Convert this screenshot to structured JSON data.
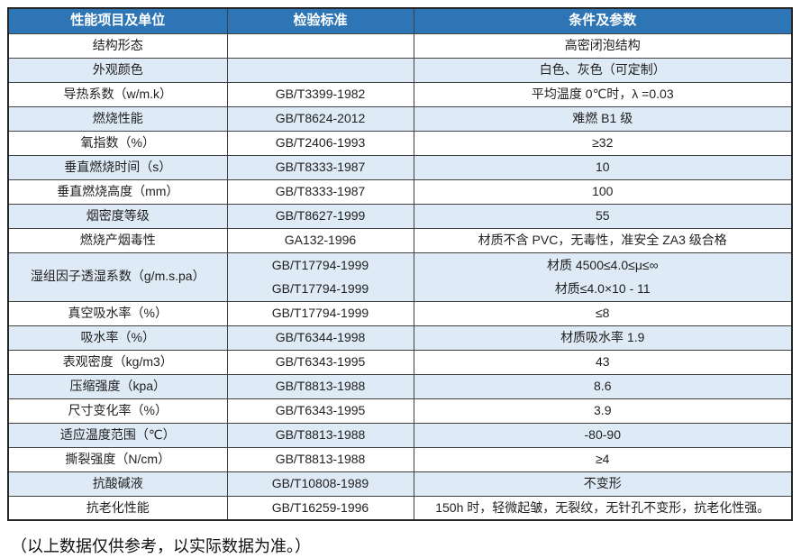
{
  "colors": {
    "header_bg": "#2E75B6",
    "header_text": "#FFFFFF",
    "row_alt_bg": "#DEEAF6",
    "border": "#404040",
    "text": "#1F1F1F"
  },
  "table": {
    "columns": [
      "性能项目及单位",
      "检验标准",
      "条件及参数"
    ],
    "rows": [
      {
        "label": "结构形态",
        "standard": "",
        "value": "高密闭泡结构",
        "alt": false
      },
      {
        "label": "外观颜色",
        "standard": "",
        "value": "白色、灰色（可定制）",
        "alt": true
      },
      {
        "label": "导热系数（w/m.k）",
        "standard": "GB/T3399-1982",
        "value": "平均温度 0℃时，λ =0.03",
        "alt": false
      },
      {
        "label": "燃烧性能",
        "standard": "GB/T8624-2012",
        "value": "难燃 B1 级",
        "alt": true
      },
      {
        "label": "氧指数（%）",
        "standard": "GB/T2406-1993",
        "value": "≥32",
        "alt": false
      },
      {
        "label": "垂直燃烧时间（s）",
        "standard": "GB/T8333-1987",
        "value": "10",
        "alt": true
      },
      {
        "label": "垂直燃烧高度（mm）",
        "standard": "GB/T8333-1987",
        "value": "100",
        "alt": false
      },
      {
        "label": "烟密度等级",
        "standard": "GB/T8627-1999",
        "value": "55",
        "alt": true
      },
      {
        "label": "燃烧产烟毒性",
        "standard": "GA132-1996",
        "value": "材质不含 PVC，无毒性，准安全 ZA3 级合格",
        "alt": false
      },
      {
        "label": "湿组因子透湿系数（g/m.s.pa）",
        "standard": [
          "GB/T17794-1999",
          "GB/T17794-1999"
        ],
        "value": [
          "材质 4500≤4.0≤μ≤∞",
          "材质≤4.0×10 - 11"
        ],
        "alt": true,
        "tall": true
      },
      {
        "label": "真空吸水率（%）",
        "standard": "GB/T17794-1999",
        "value": "≤8",
        "alt": false
      },
      {
        "label": "吸水率（%）",
        "standard": "GB/T6344-1998",
        "value": "材质吸水率 1.9",
        "alt": true
      },
      {
        "label": "表观密度（kg/m3）",
        "standard": "GB/T6343-1995",
        "value": "43",
        "alt": false
      },
      {
        "label": "压缩强度（kpa）",
        "standard": "GB/T8813-1988",
        "value": "8.6",
        "alt": true
      },
      {
        "label": "尺寸变化率（%）",
        "standard": "GB/T6343-1995",
        "value": "3.9",
        "alt": false
      },
      {
        "label": "适应温度范围（℃）",
        "standard": "GB/T8813-1988",
        "value": "-80-90",
        "alt": true
      },
      {
        "label": "撕裂强度（N/cm）",
        "standard": "GB/T8813-1988",
        "value": "≥4",
        "alt": false
      },
      {
        "label": "抗酸碱液",
        "standard": "GB/T10808-1989",
        "value": "不变形",
        "alt": true
      },
      {
        "label": "抗老化性能",
        "standard": "GB/T16259-1996",
        "value": "150h 时，轻微起皱，无裂纹，无针孔不变形，抗老化性强。",
        "alt": false
      }
    ]
  },
  "footnote": "（以上数据仅供参考，以实际数据为准。）"
}
